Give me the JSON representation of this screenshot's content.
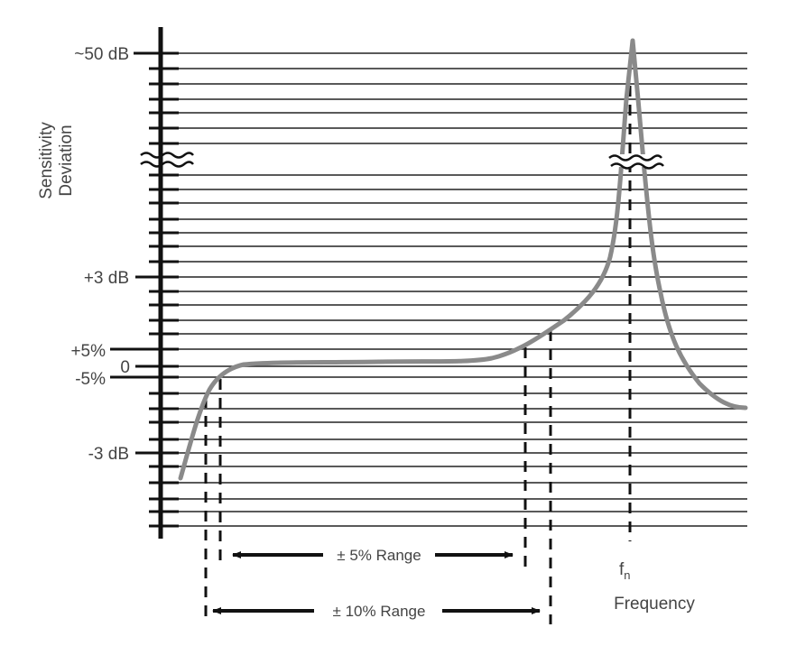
{
  "y_axis": {
    "title_line1": "Sensitivity",
    "title_line2": "Deviation",
    "labels": {
      "top": "~50 dB",
      "plus3": "+3 dB",
      "plus5pct": "+5%",
      "zero": "0",
      "minus5pct": "-5%",
      "minus3": "-3 dB"
    }
  },
  "x_axis": {
    "title": "Frequency",
    "resonance_label": "f",
    "resonance_subscript": "n"
  },
  "ranges": {
    "five_pct": "± 5% Range",
    "ten_pct": "± 10% Range"
  },
  "colors": {
    "curve": "#8a8a8a",
    "grid": "#222222",
    "axis": "#111111",
    "text": "#444444"
  }
}
